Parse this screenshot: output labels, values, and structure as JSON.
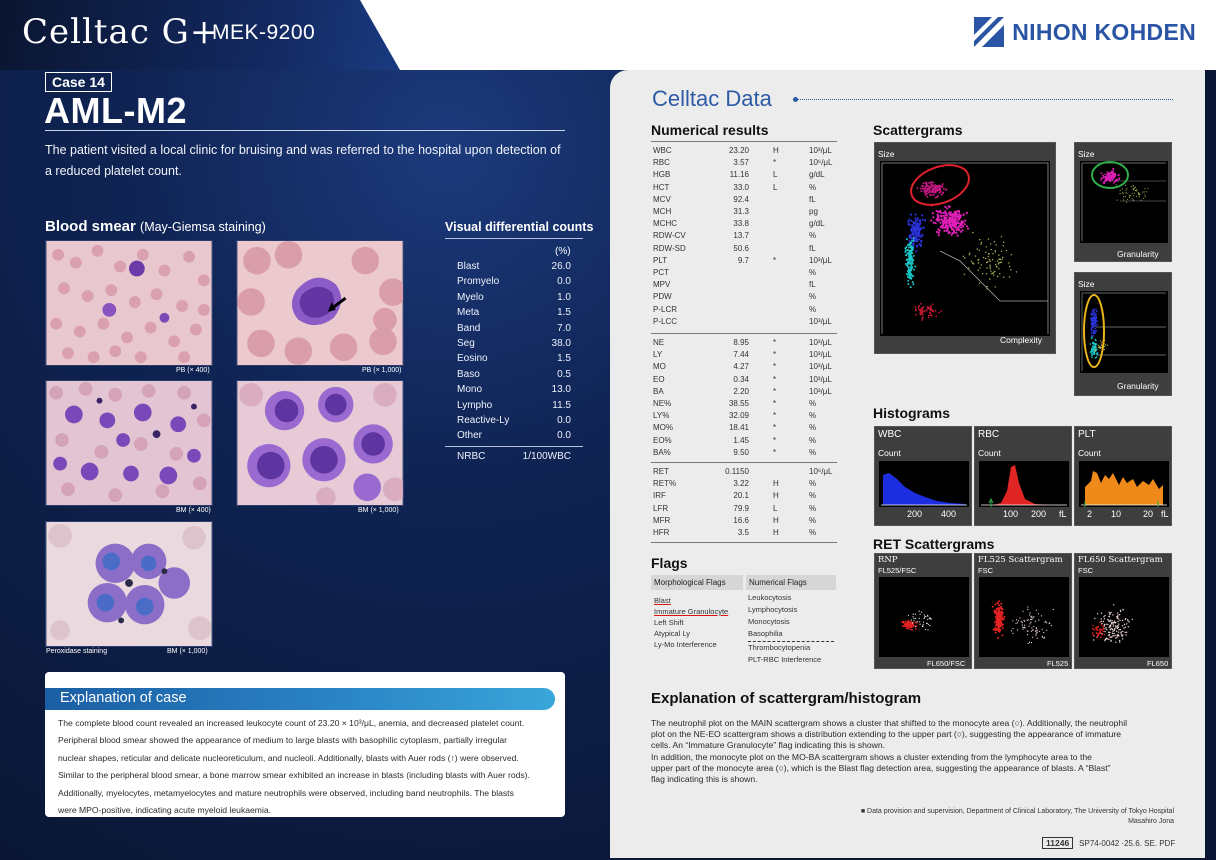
{
  "header": {
    "product_logo": "Celltac G+",
    "model": "MEK-9200",
    "company": "NIHON KOHDEN"
  },
  "case": {
    "badge": "Case 14",
    "title": "AML-M2",
    "intro_line1": "The patient visited a local clinic for bruising and was referred to the hospital upon detection of",
    "intro_line2": "a reduced platelet count."
  },
  "blood_smear": {
    "heading": "Blood smear",
    "subheading": "(May-Giemsa staining)",
    "images": [
      {
        "caption": "PB (× 400)"
      },
      {
        "caption": "PB (× 1,000)"
      },
      {
        "caption": "BM (× 400)"
      },
      {
        "caption": "BM (× 1,000)"
      },
      {
        "caption_left": "Peroxidase staining",
        "caption": "BM (× 1,000)"
      }
    ]
  },
  "visual_diff": {
    "heading": "Visual differential counts",
    "pct_header": "(%)",
    "rows": [
      {
        "name": "Blast",
        "value": "26.0"
      },
      {
        "name": "Promyelo",
        "value": "0.0"
      },
      {
        "name": "Myelo",
        "value": "1.0"
      },
      {
        "name": "Meta",
        "value": "1.5"
      },
      {
        "name": "Band",
        "value": "7.0"
      },
      {
        "name": "Seg",
        "value": "38.0"
      },
      {
        "name": "Eosino",
        "value": "1.5"
      },
      {
        "name": "Baso",
        "value": "0.5"
      },
      {
        "name": "Mono",
        "value": "13.0"
      },
      {
        "name": "Lympho",
        "value": "11.5"
      },
      {
        "name": "Reactive-Ly",
        "value": "0.0"
      },
      {
        "name": "Other",
        "value": "0.0"
      }
    ],
    "nrbc": {
      "name": "NRBC",
      "value": "1/100WBC"
    }
  },
  "explanation_case": {
    "heading": "Explanation of case",
    "lines": [
      "The complete blood count revealed an increased leukocyte count of 23.20 × 10³/μL, anemia, and decreased platelet count.",
      "Peripheral blood smear showed the appearance of medium to large blasts with basophilic cytoplasm, partially irregular",
      "nuclear shapes, reticular and delicate nucleoreticulum, and nucleoli. Additionally, blasts with Auer rods (↑) were observed.",
      "Similar to the peripheral blood smear, a bone marrow smear exhibited an increase in blasts (including blasts with Auer rods).",
      "Additionally, myelocytes, metamyelocytes and mature neutrophils were observed, including band neutrophils. The blasts",
      "were MPO-positive, indicating acute myeloid leukaemia."
    ]
  },
  "celltac_data": {
    "title": "Celltac Data",
    "numerical_heading": "Numerical results",
    "group1": [
      {
        "n": "WBC",
        "v": "23.20",
        "f": "H",
        "u": "10³/μL"
      },
      {
        "n": "RBC",
        "v": "3.57",
        "f": "*",
        "u": "10⁶/μL"
      },
      {
        "n": "HGB",
        "v": "11.16",
        "f": "L",
        "u": "g/dL"
      },
      {
        "n": "HCT",
        "v": "33.0",
        "f": "L",
        "u": "%"
      },
      {
        "n": "MCV",
        "v": "92.4",
        "f": "",
        "u": "fL"
      },
      {
        "n": "MCH",
        "v": "31.3",
        "f": "",
        "u": "pg"
      },
      {
        "n": "MCHC",
        "v": "33.8",
        "f": "",
        "u": "g/dL"
      },
      {
        "n": "RDW-CV",
        "v": "13.7",
        "f": "",
        "u": "%"
      },
      {
        "n": "RDW-SD",
        "v": "50.6",
        "f": "",
        "u": "fL"
      },
      {
        "n": "PLT",
        "v": "9.7",
        "f": "*",
        "u": "10³/μL"
      },
      {
        "n": "PCT",
        "v": "",
        "f": "",
        "u": "%"
      },
      {
        "n": "MPV",
        "v": "",
        "f": "",
        "u": "fL"
      },
      {
        "n": "PDW",
        "v": "",
        "f": "",
        "u": "%"
      },
      {
        "n": "P-LCR",
        "v": "",
        "f": "",
        "u": "%"
      },
      {
        "n": "P-LCC",
        "v": "",
        "f": "",
        "u": "10³/μL"
      }
    ],
    "group2": [
      {
        "n": "NE",
        "v": "8.95",
        "f": "*",
        "u": "10³/μL"
      },
      {
        "n": "LY",
        "v": "7.44",
        "f": "*",
        "u": "10³/μL"
      },
      {
        "n": "MO",
        "v": "4.27",
        "f": "*",
        "u": "10³/μL"
      },
      {
        "n": "EO",
        "v": "0.34",
        "f": "*",
        "u": "10³/μL"
      },
      {
        "n": "BA",
        "v": "2.20",
        "f": "*",
        "u": "10³/μL"
      },
      {
        "n": "NE%",
        "v": "38.55",
        "f": "*",
        "u": "%"
      },
      {
        "n": "LY%",
        "v": "32.09",
        "f": "*",
        "u": "%"
      },
      {
        "n": "MO%",
        "v": "18.41",
        "f": "*",
        "u": "%"
      },
      {
        "n": "EO%",
        "v": "1.45",
        "f": "*",
        "u": "%"
      },
      {
        "n": "BA%",
        "v": "9.50",
        "f": "*",
        "u": "%"
      }
    ],
    "group3": [
      {
        "n": "RET",
        "v": "0.1150",
        "f": "",
        "u": "10⁶/μL"
      },
      {
        "n": "RET%",
        "v": "3.22",
        "f": "H",
        "u": "%"
      },
      {
        "n": "IRF",
        "v": "20.1",
        "f": "H",
        "u": "%"
      },
      {
        "n": "LFR",
        "v": "79.9",
        "f": "L",
        "u": "%"
      },
      {
        "n": "MFR",
        "v": "16.6",
        "f": "H",
        "u": "%"
      },
      {
        "n": "HFR",
        "v": "3.5",
        "f": "H",
        "u": "%"
      }
    ],
    "flags": {
      "heading": "Flags",
      "morph_header": "Morphological Flags",
      "numeric_header": "Numerical Flags",
      "morph": [
        "Blast",
        "Immature Granulocyte",
        "Left Shift",
        "Atypical Ly",
        "Ly-Mo Interference"
      ],
      "numeric_top": [
        "Leukocytosis",
        "Lymphocytosis",
        "Monocytosis",
        "Basophilia"
      ],
      "numeric_bottom": [
        "Thrombocytopenia",
        "PLT-RBC Interference"
      ]
    },
    "scattergrams": {
      "heading": "Scattergrams",
      "main_y": "Size",
      "main_x": "Complexity",
      "small1_y": "Size",
      "small1_x": "Granularity",
      "small2_y": "Size",
      "small2_x": "Granularity"
    },
    "histograms": {
      "heading": "Histograms",
      "wbc": {
        "title": "WBC",
        "ylabel": "Count",
        "ticks": [
          "200",
          "400"
        ]
      },
      "rbc": {
        "title": "RBC",
        "ylabel": "Count",
        "ticks": [
          "100",
          "200",
          "fL"
        ]
      },
      "plt": {
        "title": "PLT",
        "ylabel": "Count",
        "ticks": [
          "2",
          "10",
          "20",
          "fL"
        ]
      }
    },
    "ret": {
      "heading": "RET Scattergrams",
      "rnp": {
        "title": "RNP",
        "y": "FL525/FSC",
        "x": "FL650/FSC"
      },
      "fl525": {
        "title": "FL525 Scattergram",
        "y": "FSC",
        "x": "FL525"
      },
      "fl650": {
        "title": "FL650 Scattergram",
        "y": "FSC",
        "x": "FL650"
      }
    }
  },
  "explanation_scatter": {
    "heading": "Explanation of scattergram/histogram",
    "lines": [
      "The neutrophil plot on the MAIN scattergram shows a cluster that shifted to the monocyte area (○). Additionally, the neutrophil",
      "plot on the NE-EO scattergram shows a distribution extending to the upper part (○), suggesting the appearance of immature",
      "cells. An “Immature Granulocyte” flag indicating this is shown.",
      "In addition, the monocyte plot on the MO-BA scattergram shows a cluster extending from the lymphocyte area to the",
      "upper part of the monocyte area (○), which is the Blast flag detection area, suggesting the appearance of blasts. A “Blast”",
      "flag indicating this is shown."
    ]
  },
  "footer": {
    "credit1": "■ Data provision and supervision, Department of Clinical Laboratory, The University of Tokyo Hospital",
    "credit2": "Masahiro Jona",
    "doc_box": "11246",
    "doc_code": "SP74-0042 ·25.6. SE. PDF"
  },
  "colors": {
    "accent_blue": "#2c5aa4",
    "navy": "#0f2352",
    "circle_red": "#e0202b",
    "circle_green": "#2fae4a",
    "circle_yellow": "#e8b419"
  }
}
